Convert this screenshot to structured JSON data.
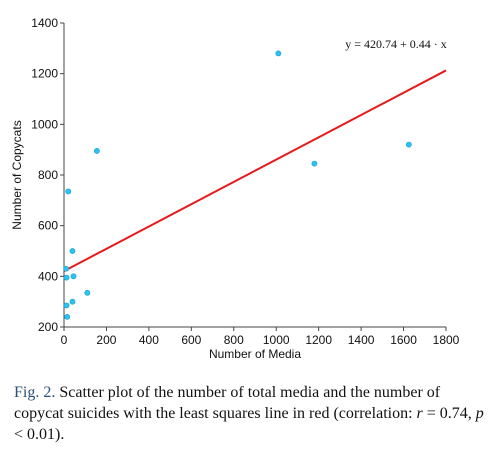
{
  "chart_data": {
    "type": "scatter",
    "xlabel": "Number of Media",
    "ylabel": "Number of Copycats",
    "xlim": [
      0,
      1800
    ],
    "ylim": [
      200,
      1400
    ],
    "x_ticks": [
      0,
      200,
      400,
      600,
      800,
      1000,
      1200,
      1400,
      1600,
      1800
    ],
    "y_ticks": [
      200,
      400,
      600,
      800,
      1000,
      1200,
      1400
    ],
    "points": [
      {
        "x": 10,
        "y": 430
      },
      {
        "x": 12,
        "y": 395
      },
      {
        "x": 12,
        "y": 285
      },
      {
        "x": 15,
        "y": 240
      },
      {
        "x": 20,
        "y": 735
      },
      {
        "x": 40,
        "y": 300
      },
      {
        "x": 40,
        "y": 500
      },
      {
        "x": 45,
        "y": 400
      },
      {
        "x": 110,
        "y": 335
      },
      {
        "x": 155,
        "y": 895
      },
      {
        "x": 1010,
        "y": 1280
      },
      {
        "x": 1180,
        "y": 845
      },
      {
        "x": 1625,
        "y": 920
      }
    ],
    "fit_line": {
      "intercept": 420.74,
      "slope": 0.44,
      "x_range": [
        0,
        1800
      ],
      "color": "#e8191b"
    },
    "equation_text": "y = 420.74 + 0.44 · x",
    "marker_color": "#29c3f5",
    "grid": false
  },
  "caption": {
    "label": "Fig. 2.",
    "text": " Scatter plot of the number of total media and the number of copycat suicides with the least squares line in red (correlation: ",
    "r_symbol": "r",
    "r_value": " = 0.74, ",
    "p_symbol": "p",
    "p_value": " < 0.01)."
  }
}
